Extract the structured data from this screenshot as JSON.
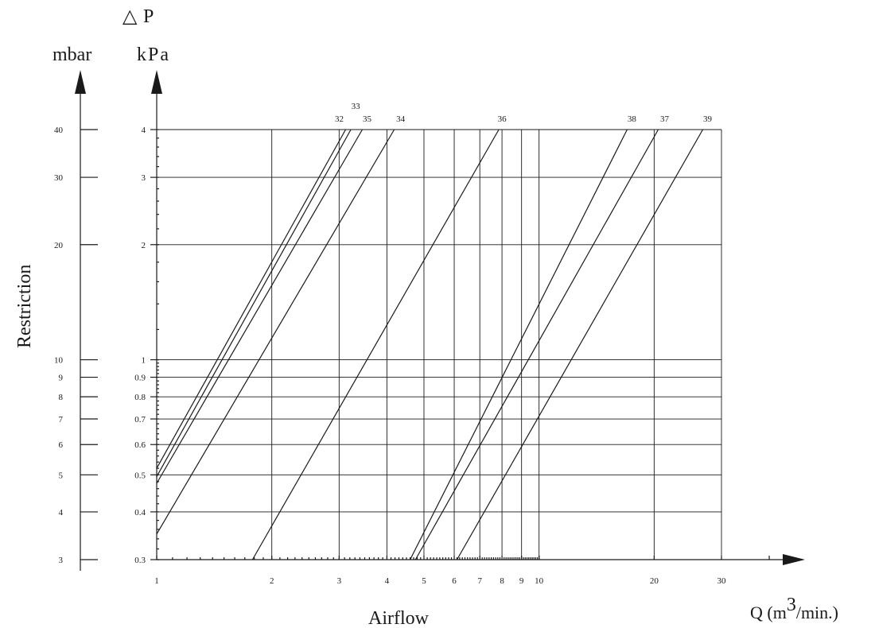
{
  "chart_data": {
    "type": "line",
    "delta_symbol": "△",
    "delta_letter": "P",
    "left_unit": "mbar",
    "right_unit": "kPa",
    "ylabel": "Restriction",
    "xlabel": "Airflow",
    "xunit_prefix": "Q (m",
    "xunit_sup": "3",
    "xunit_suffix": "/min.)",
    "x_scale": "log",
    "y_scale": "log",
    "xlim": [
      1,
      30
    ],
    "ylim_kpa": [
      0.3,
      4
    ],
    "grid": true,
    "x_ticks": [
      1,
      2,
      3,
      4,
      5,
      6,
      7,
      8,
      9,
      10,
      20,
      30
    ],
    "x_tick_labels": [
      "1",
      "2",
      "3",
      "4",
      "5",
      "6",
      "7",
      "8",
      "9",
      "10",
      "20",
      "30"
    ],
    "y_ticks_kpa": [
      0.3,
      0.4,
      0.5,
      0.6,
      0.7,
      0.8,
      0.9,
      1,
      2,
      3,
      4
    ],
    "y_tick_labels_kpa": [
      "0.3",
      "0.4",
      "0.5",
      "0.6",
      "0.7",
      "0.8",
      "0.9",
      "1",
      "2",
      "3",
      "4"
    ],
    "y_ticks_mbar": [
      3,
      4,
      5,
      6,
      7,
      8,
      9,
      10,
      20,
      30,
      40
    ],
    "y_tick_labels_mbar": [
      "3",
      "4",
      "5",
      "6",
      "7",
      "8",
      "9",
      "10",
      "20",
      "30",
      "40"
    ],
    "series": [
      {
        "name": "32",
        "x": [
          1.0,
          3.12
        ],
        "y": [
          0.52,
          4
        ]
      },
      {
        "name": "33",
        "x": [
          1.0,
          3.22
        ],
        "y": [
          0.495,
          4
        ]
      },
      {
        "name": "35",
        "x": [
          1.0,
          3.45
        ],
        "y": [
          0.475,
          4
        ]
      },
      {
        "name": "34",
        "x": [
          1.0,
          4.18
        ],
        "y": [
          0.35,
          4
        ]
      },
      {
        "name": "36",
        "x": [
          1.78,
          7.85
        ],
        "y": [
          0.3,
          4
        ]
      },
      {
        "name": "38",
        "x": [
          4.6,
          17.0
        ],
        "y": [
          0.3,
          4
        ]
      },
      {
        "name": "37",
        "x": [
          4.75,
          20.5
        ],
        "y": [
          0.3,
          4
        ]
      },
      {
        "name": "39",
        "x": [
          6.1,
          26.8
        ],
        "y": [
          0.3,
          4
        ]
      }
    ]
  }
}
